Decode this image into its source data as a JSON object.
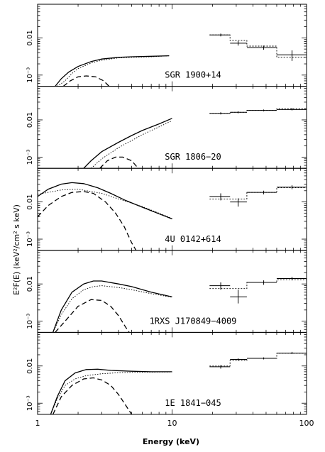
{
  "chart_data": {
    "type": "line",
    "xlabel": "Energy (keV)",
    "ylabel": "E²F(E) (keV²/cm² s keV)",
    "xscale": "log",
    "yscale": "log",
    "xlim": [
      1,
      100
    ],
    "ylim": [
      0.0005,
      0.08
    ],
    "x_ticklabels": [
      "1",
      "10",
      "100"
    ],
    "y_ticklabels": [
      "10⁻³",
      "0.01"
    ],
    "panels": [
      {
        "label": "SGR 1900+14",
        "total": [
          [
            1.35,
            0.0005
          ],
          [
            1.5,
            0.0008
          ],
          [
            1.7,
            0.0012
          ],
          [
            2,
            0.0017
          ],
          [
            2.5,
            0.0023
          ],
          [
            3,
            0.0027
          ],
          [
            4,
            0.003
          ],
          [
            5,
            0.0031
          ],
          [
            7,
            0.0032
          ],
          [
            9.5,
            0.0033
          ]
        ],
        "powerlaw": [
          [
            1.4,
            0.0005
          ],
          [
            1.6,
            0.0007
          ],
          [
            1.8,
            0.0011
          ],
          [
            2,
            0.0015
          ],
          [
            2.5,
            0.0021
          ],
          [
            3,
            0.0025
          ],
          [
            4,
            0.0029
          ],
          [
            5,
            0.003
          ],
          [
            7,
            0.0031
          ],
          [
            9.5,
            0.0033
          ]
        ],
        "blackbody": [
          [
            1.55,
            0.0005
          ],
          [
            1.75,
            0.0007
          ],
          [
            2,
            0.0009
          ],
          [
            2.3,
            0.00095
          ],
          [
            2.7,
            0.0009
          ],
          [
            3.1,
            0.0007
          ],
          [
            3.4,
            0.0005
          ]
        ],
        "data": [
          {
            "x": 23,
            "xlo": 19,
            "xhi": 27,
            "y": 0.012,
            "ylo": 0.011,
            "yhi": 0.013,
            "model": 0.012
          },
          {
            "x": 31,
            "xlo": 27,
            "xhi": 36,
            "y": 0.0072,
            "ylo": 0.0062,
            "yhi": 0.0082,
            "model": 0.0085
          },
          {
            "x": 48,
            "xlo": 36,
            "xhi": 60,
            "y": 0.0055,
            "ylo": 0.0048,
            "yhi": 0.0062,
            "model": 0.006
          },
          {
            "x": 78,
            "xlo": 60,
            "xhi": 100,
            "y": 0.0035,
            "ylo": 0.0024,
            "yhi": 0.0046,
            "model": 0.003
          }
        ]
      },
      {
        "label": "SGR 1806−20",
        "total": [
          [
            2.2,
            0.0005
          ],
          [
            2.5,
            0.0008
          ],
          [
            3,
            0.0014
          ],
          [
            4,
            0.0025
          ],
          [
            5,
            0.0038
          ],
          [
            6,
            0.0052
          ],
          [
            8,
            0.0078
          ],
          [
            10,
            0.011
          ]
        ],
        "powerlaw": [
          [
            2.5,
            0.0005
          ],
          [
            3,
            0.0009
          ],
          [
            4,
            0.0018
          ],
          [
            5,
            0.0028
          ],
          [
            6,
            0.004
          ],
          [
            8,
            0.0065
          ],
          [
            10,
            0.0095
          ]
        ],
        "blackbody": [
          [
            2.9,
            0.0005
          ],
          [
            3.3,
            0.0008
          ],
          [
            3.8,
            0.001
          ],
          [
            4.3,
            0.001
          ],
          [
            5,
            0.0008
          ],
          [
            5.6,
            0.0005
          ]
        ],
        "data": [
          {
            "x": 23,
            "xlo": 19,
            "xhi": 27,
            "y": 0.015,
            "ylo": 0.014,
            "yhi": 0.016,
            "model": 0.015
          },
          {
            "x": 31,
            "xlo": 27,
            "xhi": 36,
            "y": 0.016,
            "ylo": 0.015,
            "yhi": 0.017,
            "model": 0.016
          },
          {
            "x": 48,
            "xlo": 36,
            "xhi": 60,
            "y": 0.018,
            "ylo": 0.017,
            "yhi": 0.019,
            "model": 0.018
          },
          {
            "x": 78,
            "xlo": 60,
            "xhi": 100,
            "y": 0.019,
            "ylo": 0.018,
            "yhi": 0.021,
            "model": 0.02
          }
        ]
      },
      {
        "label": "4U 0142+614",
        "total": [
          [
            1,
            0.014
          ],
          [
            1.2,
            0.022
          ],
          [
            1.5,
            0.03
          ],
          [
            1.8,
            0.033
          ],
          [
            2.2,
            0.031
          ],
          [
            2.8,
            0.024
          ],
          [
            3.5,
            0.017
          ],
          [
            4.5,
            0.011
          ],
          [
            6,
            0.0072
          ],
          [
            8,
            0.0048
          ],
          [
            10,
            0.0035
          ]
        ],
        "powerlaw": [
          [
            1,
            0.016
          ],
          [
            1.5,
            0.021
          ],
          [
            2,
            0.022
          ],
          [
            3,
            0.017
          ],
          [
            4,
            0.012
          ],
          [
            6,
            0.0075
          ],
          [
            8,
            0.005
          ],
          [
            10,
            0.0036
          ]
        ],
        "blackbody": [
          [
            1,
            0.004
          ],
          [
            1.2,
            0.008
          ],
          [
            1.5,
            0.014
          ],
          [
            1.8,
            0.018
          ],
          [
            2.2,
            0.019
          ],
          [
            2.6,
            0.017
          ],
          [
            3.2,
            0.01
          ],
          [
            3.8,
            0.005
          ],
          [
            4.4,
            0.0022
          ],
          [
            5,
            0.0008
          ],
          [
            5.4,
            0.0005
          ]
        ],
        "data": [
          {
            "x": 23,
            "xlo": 19,
            "xhi": 27,
            "y": 0.014,
            "ylo": 0.011,
            "yhi": 0.017,
            "model": 0.012
          },
          {
            "x": 31,
            "xlo": 27,
            "xhi": 36,
            "y": 0.01,
            "ylo": 0.0075,
            "yhi": 0.0125,
            "model": 0.012
          },
          {
            "x": 48,
            "xlo": 36,
            "xhi": 60,
            "y": 0.018,
            "ylo": 0.016,
            "yhi": 0.02,
            "model": 0.018
          },
          {
            "x": 78,
            "xlo": 60,
            "xhi": 100,
            "y": 0.025,
            "ylo": 0.022,
            "yhi": 0.028,
            "model": 0.024
          }
        ]
      },
      {
        "label": "1RXS J170849−4009",
        "total": [
          [
            1.3,
            0.0005
          ],
          [
            1.5,
            0.002
          ],
          [
            1.8,
            0.006
          ],
          [
            2.2,
            0.01
          ],
          [
            2.6,
            0.012
          ],
          [
            3,
            0.012
          ],
          [
            4,
            0.01
          ],
          [
            5,
            0.0085
          ],
          [
            7,
            0.006
          ],
          [
            10,
            0.0045
          ]
        ],
        "powerlaw": [
          [
            1.3,
            0.0005
          ],
          [
            1.5,
            0.0015
          ],
          [
            1.8,
            0.004
          ],
          [
            2.2,
            0.007
          ],
          [
            2.6,
            0.0085
          ],
          [
            3,
            0.009
          ],
          [
            4,
            0.008
          ],
          [
            5,
            0.007
          ],
          [
            7,
            0.0055
          ],
          [
            10,
            0.0044
          ]
        ],
        "blackbody": [
          [
            1.35,
            0.0005
          ],
          [
            1.6,
            0.001
          ],
          [
            2,
            0.0025
          ],
          [
            2.5,
            0.0038
          ],
          [
            3,
            0.0036
          ],
          [
            3.5,
            0.0025
          ],
          [
            4,
            0.0014
          ],
          [
            4.5,
            0.0007
          ],
          [
            4.8,
            0.0005
          ]
        ],
        "data": [
          {
            "x": 23,
            "xlo": 19,
            "xhi": 27,
            "y": 0.009,
            "ylo": 0.007,
            "yhi": 0.011,
            "model": 0.0075
          },
          {
            "x": 31,
            "xlo": 27,
            "xhi": 36,
            "y": 0.0045,
            "ylo": 0.003,
            "yhi": 0.007,
            "model": 0.0075
          },
          {
            "x": 48,
            "xlo": 36,
            "xhi": 60,
            "y": 0.011,
            "ylo": 0.0095,
            "yhi": 0.0125,
            "model": 0.011
          },
          {
            "x": 78,
            "xlo": 60,
            "xhi": 100,
            "y": 0.014,
            "ylo": 0.0125,
            "yhi": 0.0155,
            "model": 0.013
          }
        ]
      },
      {
        "label": "1E 1841−045",
        "total": [
          [
            1.25,
            0.0005
          ],
          [
            1.4,
            0.0015
          ],
          [
            1.6,
            0.004
          ],
          [
            1.9,
            0.0065
          ],
          [
            2.3,
            0.008
          ],
          [
            2.8,
            0.0082
          ],
          [
            3.5,
            0.0076
          ],
          [
            5,
            0.0072
          ],
          [
            7,
            0.007
          ],
          [
            10,
            0.007
          ]
        ],
        "powerlaw": [
          [
            1.25,
            0.0005
          ],
          [
            1.4,
            0.0013
          ],
          [
            1.6,
            0.003
          ],
          [
            1.9,
            0.0045
          ],
          [
            2.3,
            0.0055
          ],
          [
            3,
            0.0062
          ],
          [
            4,
            0.0066
          ],
          [
            6,
            0.0068
          ],
          [
            10,
            0.0069
          ]
        ],
        "blackbody": [
          [
            1.3,
            0.0005
          ],
          [
            1.5,
            0.0015
          ],
          [
            1.8,
            0.003
          ],
          [
            2.2,
            0.0045
          ],
          [
            2.6,
            0.0048
          ],
          [
            3,
            0.0042
          ],
          [
            3.5,
            0.003
          ],
          [
            4,
            0.0017
          ],
          [
            4.5,
            0.0009
          ],
          [
            5,
            0.0005
          ]
        ],
        "data": [
          {
            "x": 23,
            "xlo": 19,
            "xhi": 27,
            "y": 0.0095,
            "ylo": 0.0085,
            "yhi": 0.0105,
            "model": 0.01
          },
          {
            "x": 31,
            "xlo": 27,
            "xhi": 36,
            "y": 0.015,
            "ylo": 0.014,
            "yhi": 0.016,
            "model": 0.014
          },
          {
            "x": 48,
            "xlo": 36,
            "xhi": 60,
            "y": 0.016,
            "ylo": 0.015,
            "yhi": 0.017,
            "model": 0.016
          },
          {
            "x": 78,
            "xlo": 60,
            "xhi": 100,
            "y": 0.022,
            "ylo": 0.021,
            "yhi": 0.024,
            "model": 0.022
          }
        ]
      }
    ]
  }
}
